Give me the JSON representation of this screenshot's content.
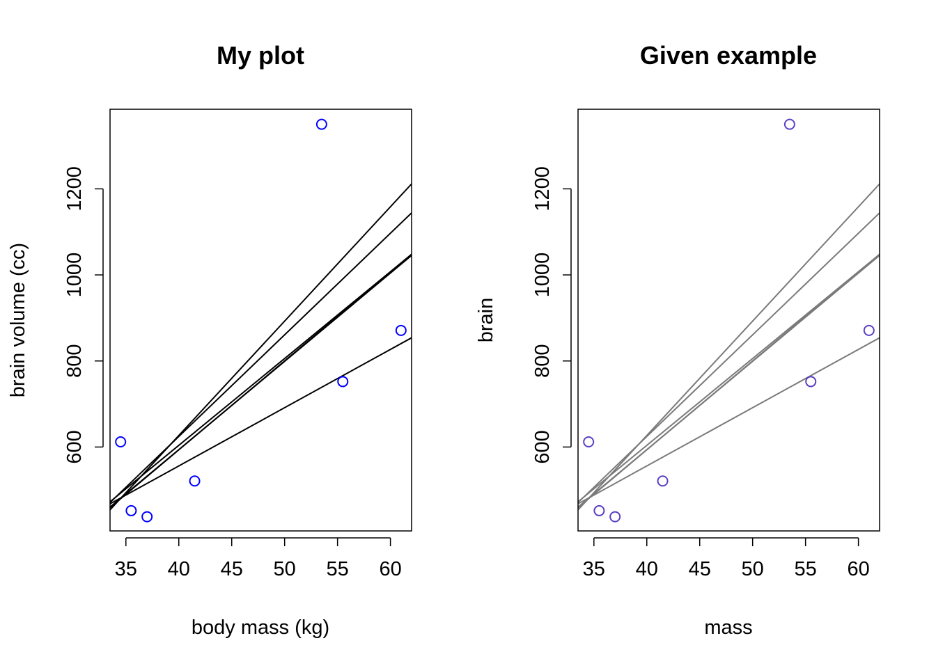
{
  "chart_data": [
    {
      "type": "scatter",
      "title": "My plot",
      "xlabel": "body mass (kg)",
      "ylabel": "brain volume (cc)",
      "xlim": [
        33.5,
        62
      ],
      "ylim": [
        405,
        1385
      ],
      "xticks": [
        "35",
        "40",
        "45",
        "50",
        "55",
        "60"
      ],
      "yticks": [
        "600",
        "800",
        "1000",
        "1200"
      ],
      "point_color": "#0000ff",
      "line_color": "#000000",
      "points": {
        "x": [
          37.0,
          35.5,
          34.5,
          41.5,
          55.5,
          61.0,
          53.5
        ],
        "y": [
          438,
          452,
          612,
          521,
          752,
          871,
          1350
        ]
      },
      "lines": [
        {
          "intercept": -436.4,
          "slope": 26.58
        },
        {
          "intercept": -320.3,
          "slope": 23.62
        },
        {
          "intercept": -232.9,
          "slope": 20.66
        },
        {
          "intercept": -226.9,
          "slope": 20.52
        },
        {
          "intercept": -203.3,
          "slope": 20.18
        },
        {
          "intercept": 14.4,
          "slope": 13.54
        }
      ]
    },
    {
      "type": "scatter",
      "title": "Given example",
      "xlabel": "mass",
      "ylabel": "brain",
      "xlim": [
        33.5,
        62
      ],
      "ylim": [
        405,
        1385
      ],
      "xticks": [
        "35",
        "40",
        "45",
        "50",
        "55",
        "60"
      ],
      "yticks": [
        "600",
        "800",
        "1000",
        "1200"
      ],
      "point_color": "#5b3fc4",
      "line_color": "#7a7a7a",
      "points": {
        "x": [
          37.0,
          35.5,
          34.5,
          41.5,
          55.5,
          61.0,
          53.5
        ],
        "y": [
          438,
          452,
          612,
          521,
          752,
          871,
          1350
        ]
      },
      "lines": [
        {
          "intercept": -436.4,
          "slope": 26.58
        },
        {
          "intercept": -320.3,
          "slope": 23.62
        },
        {
          "intercept": -232.9,
          "slope": 20.66
        },
        {
          "intercept": -226.9,
          "slope": 20.52
        },
        {
          "intercept": -203.3,
          "slope": 20.18
        },
        {
          "intercept": 14.4,
          "slope": 13.54
        }
      ]
    }
  ]
}
